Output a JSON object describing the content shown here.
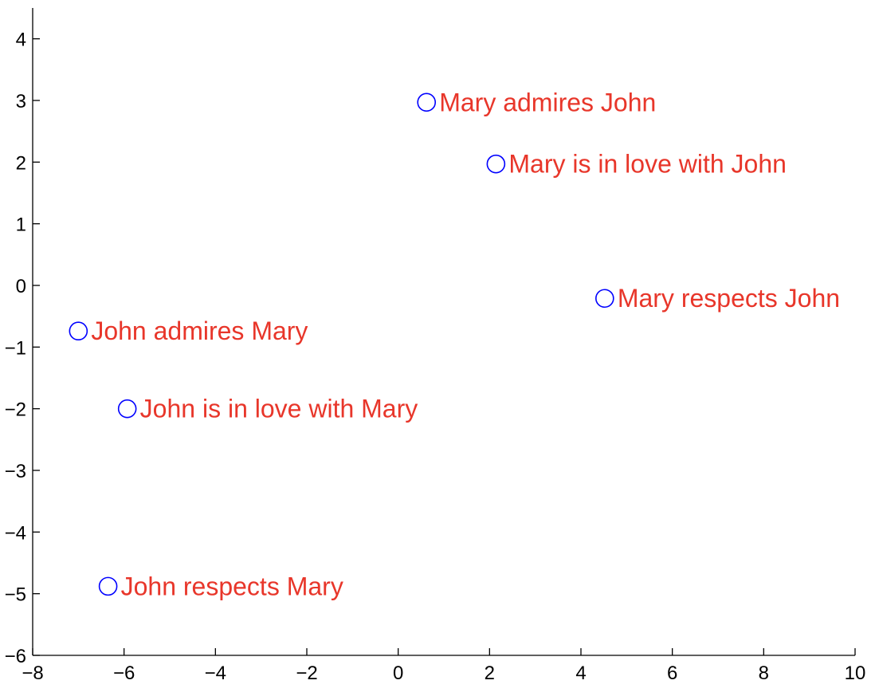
{
  "chart_data": {
    "type": "scatter",
    "title": "",
    "xlabel": "",
    "ylabel": "",
    "xlim": [
      -8,
      10
    ],
    "ylim": [
      -6,
      4.5
    ],
    "grid": false,
    "box": false,
    "xticks": [
      -8,
      -6,
      -4,
      -2,
      0,
      2,
      4,
      6,
      8,
      10
    ],
    "yticks": [
      -6,
      -5,
      -4,
      -3,
      -2,
      -1,
      0,
      1,
      2,
      3,
      4
    ],
    "xtick_labels": [
      "−8",
      "−6",
      "−4",
      "−2",
      "0",
      "2",
      "4",
      "6",
      "8",
      "10"
    ],
    "ytick_labels": [
      "−6",
      "−5",
      "−4",
      "−3",
      "−2",
      "−1",
      "0",
      "1",
      "2",
      "3",
      "4"
    ],
    "points": [
      {
        "x": 0.62,
        "y": 2.97,
        "label": "Mary admires John"
      },
      {
        "x": 2.14,
        "y": 1.97,
        "label": "Mary is in love with John"
      },
      {
        "x": 4.52,
        "y": -0.21,
        "label": "Mary respects John"
      },
      {
        "x": -7.0,
        "y": -0.74,
        "label": "John admires Mary"
      },
      {
        "x": -5.93,
        "y": -2.0,
        "label": "John is in love with Mary"
      },
      {
        "x": -6.35,
        "y": -4.88,
        "label": "John respects Mary"
      }
    ],
    "marker": "open-circle",
    "marker_color": "#0000ff",
    "label_color": "#e8362a"
  }
}
